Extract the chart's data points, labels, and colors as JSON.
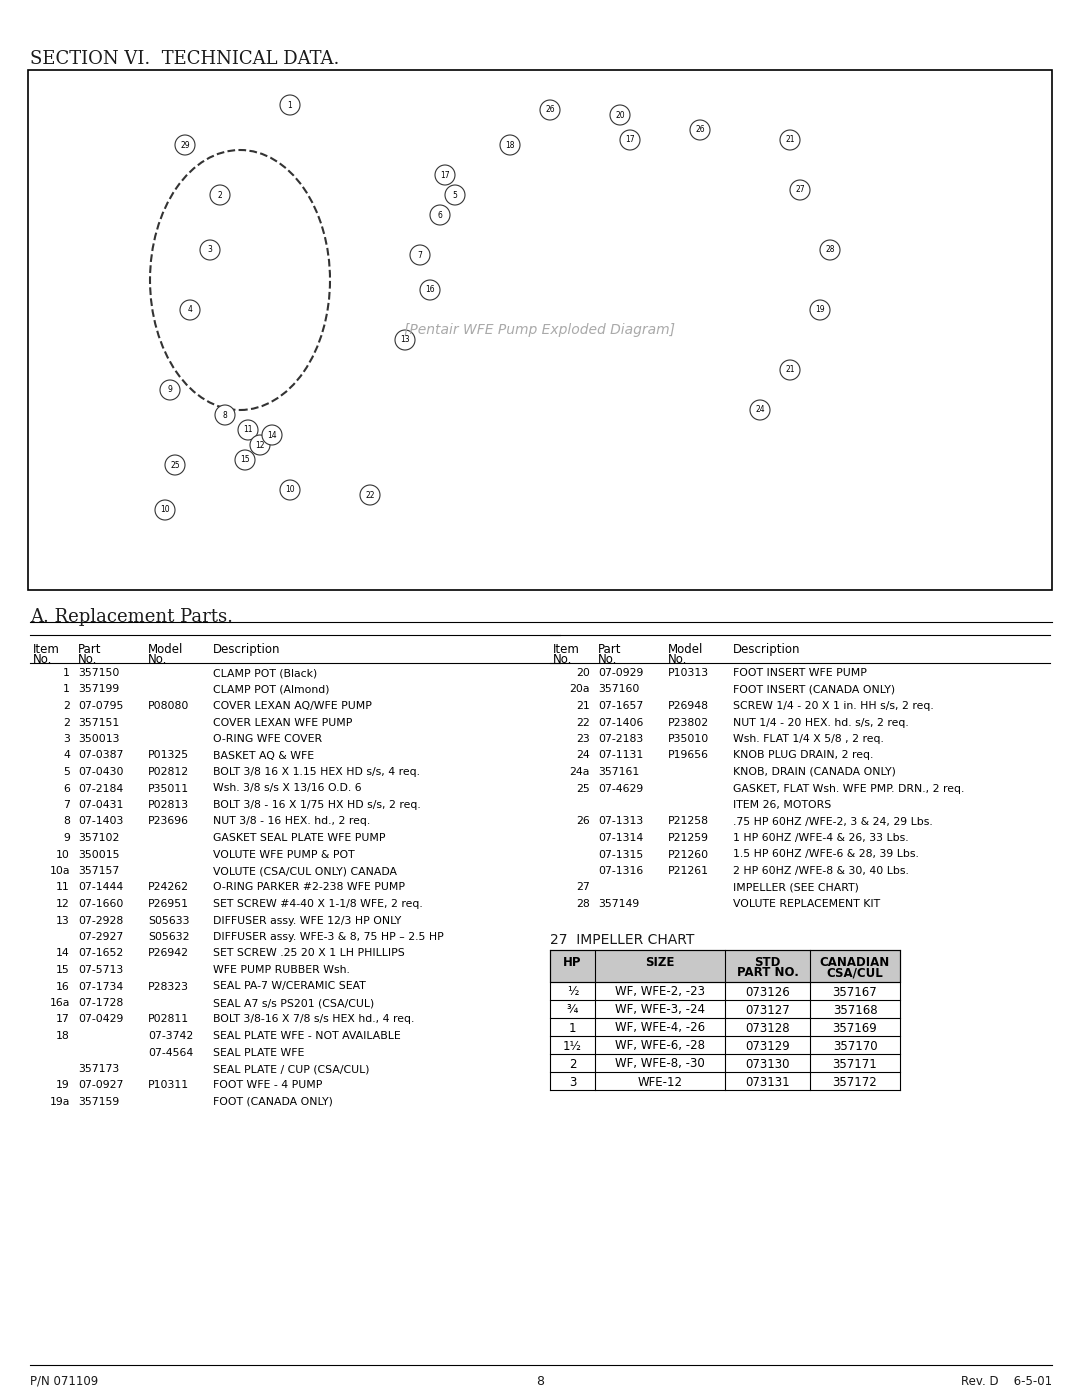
{
  "title": "SECTION VI.  TECHNICAL DATA.",
  "section_a_title": "A. Replacement Parts.",
  "page_number": "8",
  "pn": "P/N 071109",
  "rev": "Rev. D    6-5-01",
  "left_table_headers": [
    "Item\nNo.",
    "Part\nNo.",
    "Model\nNo.",
    "Description"
  ],
  "right_table_headers": [
    "Item\nNo.",
    "Part\nNo.",
    "Model\nNo.",
    "Description"
  ],
  "left_rows": [
    [
      "1",
      "357150",
      "",
      "CLAMP POT (Black)"
    ],
    [
      "1",
      "357199",
      "",
      "CLAMP POT (Almond)"
    ],
    [
      "2",
      "07-0795",
      "P08080",
      "COVER LEXAN AQ/WFE PUMP"
    ],
    [
      "2",
      "357151",
      "",
      "COVER LEXAN WFE PUMP"
    ],
    [
      "3",
      "350013",
      "",
      "O-RING WFE COVER"
    ],
    [
      "4",
      "07-0387",
      "P01325",
      "BASKET AQ & WFE"
    ],
    [
      "5",
      "07-0430",
      "P02812",
      "BOLT 3/8 16 X 1.15 HEX HD s/s, 4 req."
    ],
    [
      "6",
      "07-2184",
      "P35011",
      "Wsh. 3/8 s/s X 13/16 O.D. 6"
    ],
    [
      "7",
      "07-0431",
      "P02813",
      "BOLT 3/8 - 16 X 1/75 HX HD s/s, 2 req."
    ],
    [
      "8",
      "07-1403",
      "P23696",
      "NUT 3/8 - 16 HEX. hd., 2 req."
    ],
    [
      "9",
      "357102",
      "",
      "GASKET SEAL PLATE WFE PUMP"
    ],
    [
      "10",
      "350015",
      "",
      "VOLUTE WFE PUMP & POT"
    ],
    [
      "10a",
      "357157",
      "",
      "VOLUTE (CSA/CUL ONLY) CANADA"
    ],
    [
      "11",
      "07-1444",
      "P24262",
      "O-RING PARKER #2-238 WFE PUMP"
    ],
    [
      "12",
      "07-1660",
      "P26951",
      "SET SCREW #4-40 X 1-1/8 WFE, 2 req."
    ],
    [
      "13",
      "07-2928",
      "S05633",
      "DIFFUSER assy. WFE 12/3 HP ONLY"
    ],
    [
      "",
      "07-2927",
      "S05632",
      "DIFFUSER assy. WFE-3 & 8, 75 HP – 2.5 HP"
    ],
    [
      "14",
      "07-1652",
      "P26942",
      "SET SCREW .25 20 X 1 LH PHILLIPS"
    ],
    [
      "15",
      "07-5713",
      "",
      "WFE PUMP RUBBER Wsh."
    ],
    [
      "16",
      "07-1734",
      "P28323",
      "SEAL PA-7 W/CERAMIC SEAT"
    ],
    [
      "16a",
      "07-1728",
      "",
      "SEAL A7 s/s PS201 (CSA/CUL)"
    ],
    [
      "17",
      "07-0429",
      "P02811",
      "BOLT 3/8-16 X 7/8 s/s HEX hd., 4 req."
    ],
    [
      "18",
      "",
      "07-3742",
      "SEAL PLATE WFE - NOT AVAILABLE"
    ],
    [
      "",
      "",
      "07-4564",
      "SEAL PLATE WFE"
    ],
    [
      "",
      "357173",
      "",
      "SEAL PLATE / CUP (CSA/CUL)"
    ],
    [
      "19",
      "07-0927",
      "P10311",
      "FOOT WFE - 4 PUMP"
    ],
    [
      "19a",
      "357159",
      "",
      "FOOT (CANADA ONLY)"
    ]
  ],
  "right_rows": [
    [
      "20",
      "07-0929",
      "P10313",
      "FOOT INSERT WFE PUMP"
    ],
    [
      "20a",
      "357160",
      "",
      "FOOT INSERT (CANADA ONLY)"
    ],
    [
      "21",
      "07-1657",
      "P26948",
      "SCREW 1/4 - 20 X 1 in. HH s/s, 2 req."
    ],
    [
      "22",
      "07-1406",
      "P23802",
      "NUT 1/4 - 20 HEX. hd. s/s, 2 req."
    ],
    [
      "23",
      "07-2183",
      "P35010",
      "Wsh. FLAT 1/4 X 5/8 , 2 req."
    ],
    [
      "24",
      "07-1131",
      "P19656",
      "KNOB PLUG DRAIN, 2 req."
    ],
    [
      "24a",
      "357161",
      "",
      "KNOB, DRAIN (CANADA ONLY)"
    ],
    [
      "25",
      "07-4629",
      "",
      "GASKET, FLAT Wsh. WFE PMP. DRN., 2 req."
    ],
    [
      "",
      "",
      "",
      "ITEM 26, MOTORS"
    ],
    [
      "26",
      "07-1313",
      "P21258",
      ".75 HP 60HZ /WFE-2, 3 & 24, 29 Lbs."
    ],
    [
      "",
      "07-1314",
      "P21259",
      "1 HP 60HZ /WFE-4 & 26, 33 Lbs."
    ],
    [
      "",
      "07-1315",
      "P21260",
      "1.5 HP 60HZ /WFE-6 & 28, 39 Lbs."
    ],
    [
      "",
      "07-1316",
      "P21261",
      "2 HP 60HZ /WFE-8 & 30, 40 Lbs."
    ],
    [
      "27",
      "",
      "",
      "IMPELLER (SEE CHART)"
    ],
    [
      "28",
      "357149",
      "",
      "VOLUTE REPLACEMENT KIT"
    ]
  ],
  "impeller_chart_title": "27  IMPELLER CHART",
  "impeller_headers": [
    "HP",
    "SIZE",
    "STD\nPART NO.",
    "CANADIAN\nCSA/CUL"
  ],
  "impeller_rows": [
    [
      "½",
      "WF, WFE-2, -23",
      "073126",
      "357167"
    ],
    [
      "¾",
      "WF, WFE-3, -24",
      "073127",
      "357168"
    ],
    [
      "1",
      "WF, WFE-4, -26",
      "073128",
      "357169"
    ],
    [
      "1½",
      "WF, WFE-6, -28",
      "073129",
      "357170"
    ],
    [
      "2",
      "WF, WFE-8, -30",
      "073130",
      "357171"
    ],
    [
      "3",
      "WFE-12",
      "073131",
      "357172"
    ]
  ],
  "bg_color": "#ffffff",
  "text_color": "#1a1a1a",
  "line_color": "#000000",
  "header_bg": "#d0d0d0"
}
